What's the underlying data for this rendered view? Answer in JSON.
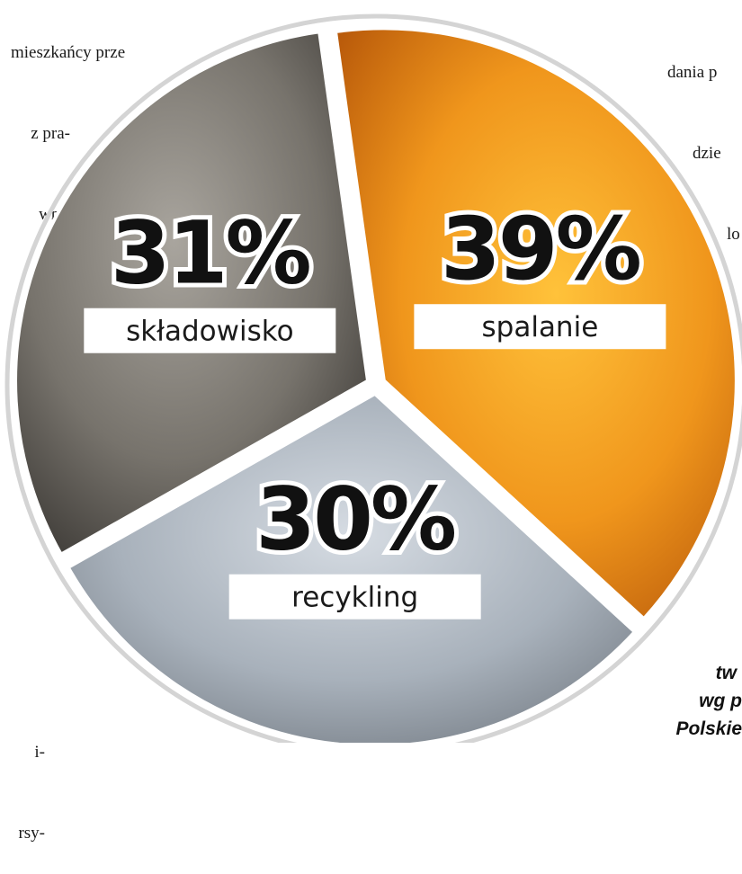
{
  "page_text": {
    "top_left": [
      "mieszkańcy prze",
      "z pra-",
      "wni-",
      "w"
    ],
    "top_right": [
      "dania p",
      "dzie",
      "lo"
    ],
    "bottom_left": [
      "i-",
      "rsy-"
    ]
  },
  "source_caption": [
    "tw",
    "wg p",
    "Polskie"
  ],
  "chart_data": {
    "type": "pie",
    "title": "",
    "slices": [
      {
        "label": "składowisko",
        "value": 31,
        "display": "31%",
        "color": "#7a7670"
      },
      {
        "label": "spalanie",
        "value": 39,
        "display": "39%",
        "color": "#e08a12"
      },
      {
        "label": "recykling",
        "value": 30,
        "display": "30%",
        "color": "#b4bcc6"
      }
    ],
    "unit": "%",
    "legend": "none",
    "labels": "inside-slices"
  },
  "colors": {
    "ring": "#d4d4d4",
    "slice_border": "#ffffff",
    "label_box": "#ffffff"
  }
}
